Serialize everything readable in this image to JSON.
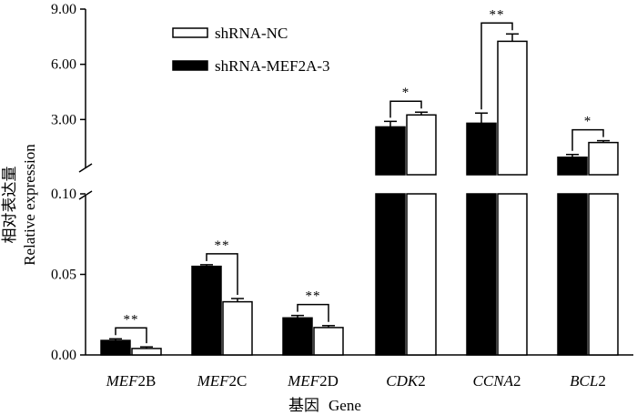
{
  "chart_data": {
    "type": "bar",
    "xlabel_cn": "基因",
    "xlabel_en": "Gene",
    "ylabel_cn": "相对表达量",
    "ylabel_en": "Relative expression",
    "y_axis_broken": true,
    "lower_segment": {
      "ylim": [
        0,
        0.1
      ],
      "ticks": [
        "0.00",
        "0.05",
        "0.10"
      ]
    },
    "upper_segment": {
      "ylim": [
        0,
        9
      ],
      "ticks": [
        "3.00",
        "6.00",
        "9.00"
      ]
    },
    "categories": [
      {
        "italic": "MEF",
        "rest": "2B"
      },
      {
        "italic": "MEF",
        "rest": "2C"
      },
      {
        "italic": "MEF",
        "rest": "2D"
      },
      {
        "italic": "CDK",
        "rest": "2"
      },
      {
        "italic": "CCNA",
        "rest": "2"
      },
      {
        "italic": "BCL",
        "rest": "2"
      }
    ],
    "series": [
      {
        "name": "shRNA-MEF2A-3",
        "color": "#000000",
        "values": [
          0.009,
          0.055,
          0.023,
          2.6,
          2.8,
          0.95
        ],
        "errors": [
          0.001,
          0.001,
          0.0015,
          0.3,
          0.55,
          0.15
        ]
      },
      {
        "name": "shRNA-NC",
        "color": "#ffffff",
        "values": [
          0.004,
          0.033,
          0.017,
          3.25,
          7.25,
          1.75
        ],
        "errors": [
          0.001,
          0.002,
          0.0012,
          0.15,
          0.4,
          0.1
        ]
      }
    ],
    "legend_order": [
      "shRNA-NC",
      "shRNA-MEF2A-3"
    ],
    "legend_position": "top-left",
    "significance": [
      "**",
      "**",
      "**",
      "*",
      "**",
      "*"
    ]
  }
}
